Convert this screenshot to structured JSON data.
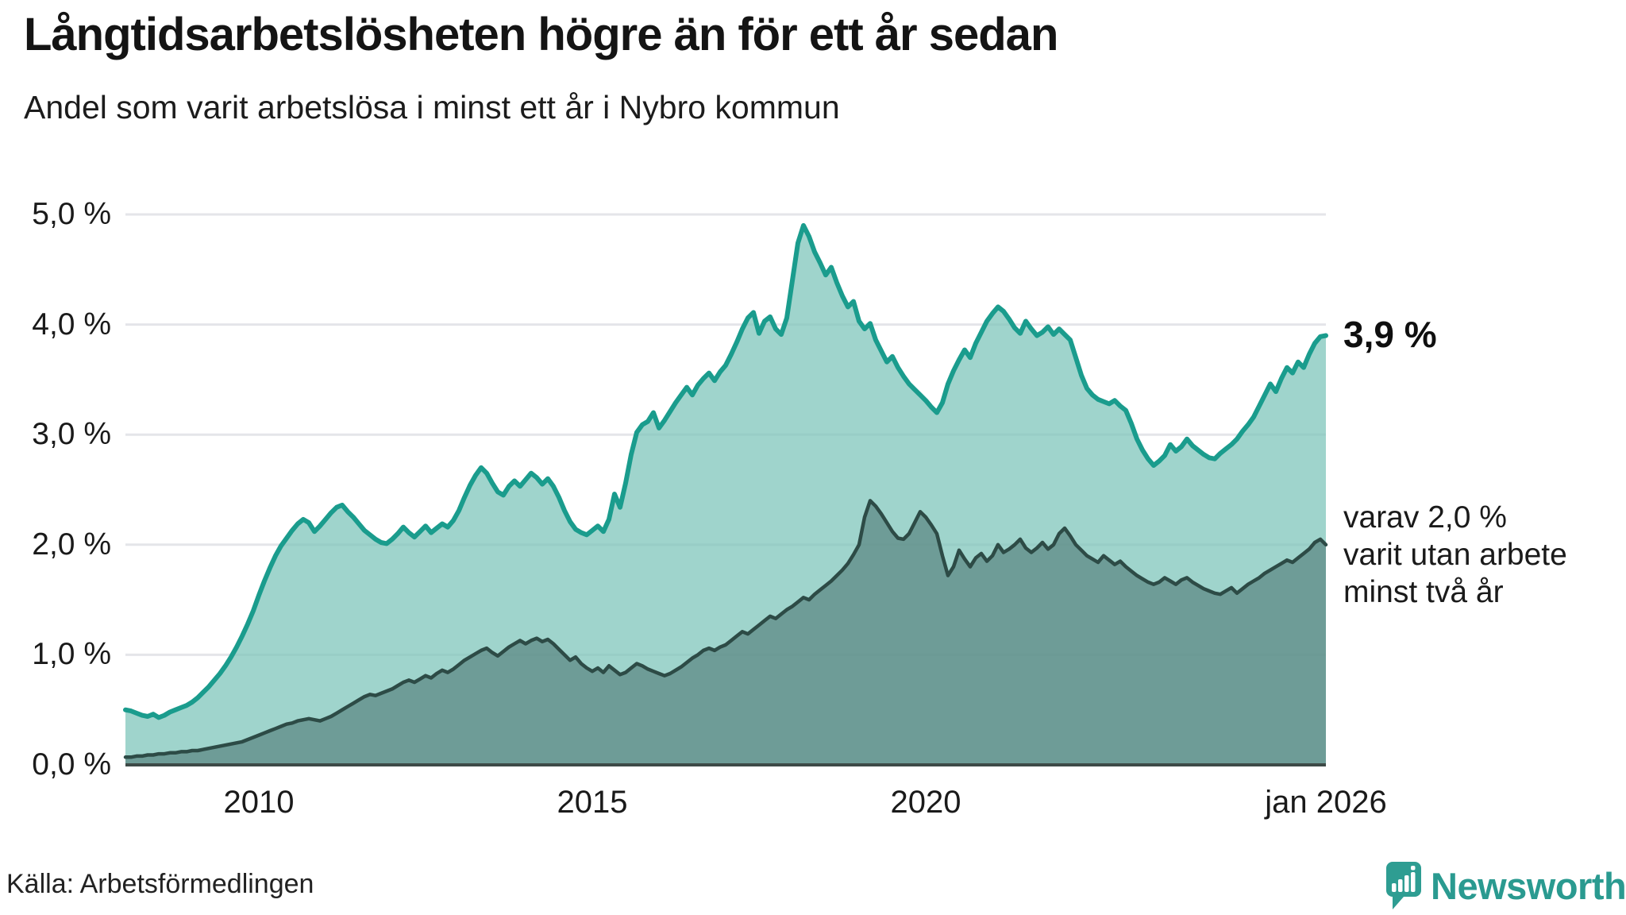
{
  "header": {
    "title": "Långtidsarbetslösheten högre än för ett år sedan",
    "subtitle": "Andel som varit arbetslösa i minst ett år i Nybro kommun"
  },
  "annotations": {
    "latest_value": "3,9 %",
    "two_year_lines": [
      "varav 2,0 %",
      "varit utan arbete",
      "minst två år"
    ]
  },
  "footer": {
    "source": "Källa: Arbetsförmedlingen",
    "brand": "Newsworthy"
  },
  "colors": {
    "line_one_year": "#1a9c8d",
    "fill_one_year": "#9fd4cc",
    "line_two_years": "#2d4b46",
    "fill_two_years": "#6f9c97",
    "gridline": "#e4e5e9",
    "axis_baseline": "#3d4a47",
    "brand_teal": "#2e9d92",
    "text": "#1a1a1a"
  },
  "chart_data": {
    "type": "area",
    "title": "Långtidsarbetslösheten högre än för ett år sedan",
    "subtitle": "Andel som varit arbetslösa i minst ett år i Nybro kommun",
    "unit": "%",
    "frequency": "monthly",
    "x_start": "2008-01",
    "x_end": "2026-01",
    "ylim": [
      0,
      5.0
    ],
    "grid": true,
    "legend_position": "annotated-right",
    "y_ticks": [
      {
        "value": 5.0,
        "label": "5,0 %"
      },
      {
        "value": 4.0,
        "label": "4,0 %"
      },
      {
        "value": 3.0,
        "label": "3,0 %"
      },
      {
        "value": 2.0,
        "label": "2,0 %"
      },
      {
        "value": 1.0,
        "label": "1,0 %"
      },
      {
        "value": 0.0,
        "label": "0,0 %"
      }
    ],
    "x_ticks": [
      {
        "month_index": 24,
        "label": "2010"
      },
      {
        "month_index": 84,
        "label": "2015"
      },
      {
        "month_index": 144,
        "label": "2020"
      },
      {
        "month_index": 216,
        "label": "jan 2026"
      }
    ],
    "series": [
      {
        "name": "Andel arbetslösa minst ett år",
        "latest_label": "3,9 %",
        "line_color": "#1a9c8d",
        "fill_color": "#9fd4cc",
        "values": [
          0.5,
          0.49,
          0.47,
          0.45,
          0.44,
          0.46,
          0.43,
          0.45,
          0.48,
          0.5,
          0.52,
          0.54,
          0.57,
          0.61,
          0.66,
          0.71,
          0.77,
          0.83,
          0.9,
          0.98,
          1.07,
          1.17,
          1.28,
          1.4,
          1.54,
          1.67,
          1.79,
          1.9,
          1.99,
          2.06,
          2.13,
          2.19,
          2.23,
          2.2,
          2.12,
          2.17,
          2.23,
          2.29,
          2.34,
          2.36,
          2.3,
          2.25,
          2.19,
          2.13,
          2.09,
          2.05,
          2.02,
          2.01,
          2.05,
          2.1,
          2.16,
          2.11,
          2.07,
          2.12,
          2.17,
          2.11,
          2.15,
          2.19,
          2.16,
          2.22,
          2.31,
          2.43,
          2.54,
          2.63,
          2.7,
          2.65,
          2.56,
          2.48,
          2.45,
          2.53,
          2.58,
          2.53,
          2.59,
          2.65,
          2.61,
          2.55,
          2.6,
          2.53,
          2.43,
          2.31,
          2.21,
          2.14,
          2.11,
          2.09,
          2.13,
          2.17,
          2.12,
          2.23,
          2.46,
          2.34,
          2.56,
          2.82,
          3.02,
          3.09,
          3.12,
          3.2,
          3.06,
          3.13,
          3.21,
          3.29,
          3.36,
          3.43,
          3.36,
          3.45,
          3.51,
          3.56,
          3.49,
          3.57,
          3.63,
          3.73,
          3.84,
          3.96,
          4.06,
          4.11,
          3.92,
          4.03,
          4.07,
          3.96,
          3.91,
          4.06,
          4.4,
          4.74,
          4.9,
          4.8,
          4.66,
          4.56,
          4.45,
          4.52,
          4.38,
          4.26,
          4.16,
          4.21,
          4.03,
          3.96,
          4.01,
          3.86,
          3.76,
          3.66,
          3.71,
          3.61,
          3.53,
          3.46,
          3.41,
          3.36,
          3.31,
          3.25,
          3.2,
          3.29,
          3.46,
          3.58,
          3.68,
          3.77,
          3.7,
          3.83,
          3.93,
          4.03,
          4.1,
          4.16,
          4.12,
          4.05,
          3.97,
          3.92,
          4.03,
          3.96,
          3.9,
          3.93,
          3.98,
          3.91,
          3.96,
          3.91,
          3.86,
          3.7,
          3.54,
          3.42,
          3.36,
          3.32,
          3.3,
          3.28,
          3.31,
          3.26,
          3.22,
          3.1,
          2.96,
          2.86,
          2.78,
          2.72,
          2.76,
          2.81,
          2.91,
          2.85,
          2.89,
          2.96,
          2.9,
          2.86,
          2.82,
          2.79,
          2.78,
          2.83,
          2.87,
          2.91,
          2.96,
          3.03,
          3.09,
          3.16,
          3.26,
          3.36,
          3.46,
          3.39,
          3.51,
          3.61,
          3.56,
          3.66,
          3.61,
          3.73,
          3.83,
          3.89,
          3.9
        ]
      },
      {
        "name": "varav utan arbete minst två år",
        "latest_label": "2,0 %",
        "line_color": "#2d4b46",
        "fill_color": "#6f9c97",
        "values": [
          0.07,
          0.07,
          0.08,
          0.08,
          0.09,
          0.09,
          0.1,
          0.1,
          0.11,
          0.11,
          0.12,
          0.12,
          0.13,
          0.13,
          0.14,
          0.15,
          0.16,
          0.17,
          0.18,
          0.19,
          0.2,
          0.21,
          0.23,
          0.25,
          0.27,
          0.29,
          0.31,
          0.33,
          0.35,
          0.37,
          0.38,
          0.4,
          0.41,
          0.42,
          0.41,
          0.4,
          0.42,
          0.44,
          0.47,
          0.5,
          0.53,
          0.56,
          0.59,
          0.62,
          0.64,
          0.63,
          0.65,
          0.67,
          0.69,
          0.72,
          0.75,
          0.77,
          0.75,
          0.78,
          0.81,
          0.79,
          0.83,
          0.86,
          0.84,
          0.87,
          0.91,
          0.95,
          0.98,
          1.01,
          1.04,
          1.06,
          1.02,
          0.99,
          1.03,
          1.07,
          1.1,
          1.13,
          1.1,
          1.13,
          1.15,
          1.12,
          1.14,
          1.1,
          1.05,
          1.0,
          0.95,
          0.98,
          0.92,
          0.88,
          0.85,
          0.88,
          0.84,
          0.9,
          0.86,
          0.82,
          0.84,
          0.88,
          0.92,
          0.9,
          0.87,
          0.85,
          0.83,
          0.81,
          0.83,
          0.86,
          0.89,
          0.93,
          0.97,
          1.0,
          1.04,
          1.06,
          1.04,
          1.07,
          1.09,
          1.13,
          1.17,
          1.21,
          1.19,
          1.23,
          1.27,
          1.31,
          1.35,
          1.33,
          1.37,
          1.41,
          1.44,
          1.48,
          1.52,
          1.5,
          1.55,
          1.59,
          1.63,
          1.67,
          1.72,
          1.77,
          1.83,
          1.91,
          2.0,
          2.25,
          2.4,
          2.35,
          2.28,
          2.2,
          2.12,
          2.06,
          2.05,
          2.1,
          2.2,
          2.3,
          2.25,
          2.18,
          2.1,
          1.9,
          1.72,
          1.8,
          1.95,
          1.87,
          1.8,
          1.88,
          1.92,
          1.85,
          1.9,
          2.0,
          1.93,
          1.96,
          2.0,
          2.05,
          1.97,
          1.93,
          1.97,
          2.02,
          1.96,
          2.0,
          2.1,
          2.15,
          2.08,
          2.0,
          1.95,
          1.9,
          1.87,
          1.84,
          1.9,
          1.86,
          1.82,
          1.85,
          1.8,
          1.76,
          1.72,
          1.69,
          1.66,
          1.64,
          1.66,
          1.7,
          1.67,
          1.64,
          1.68,
          1.7,
          1.66,
          1.63,
          1.6,
          1.58,
          1.56,
          1.55,
          1.58,
          1.61,
          1.56,
          1.6,
          1.64,
          1.67,
          1.7,
          1.74,
          1.77,
          1.8,
          1.83,
          1.86,
          1.84,
          1.88,
          1.92,
          1.96,
          2.02,
          2.05,
          2.0
        ]
      }
    ]
  }
}
